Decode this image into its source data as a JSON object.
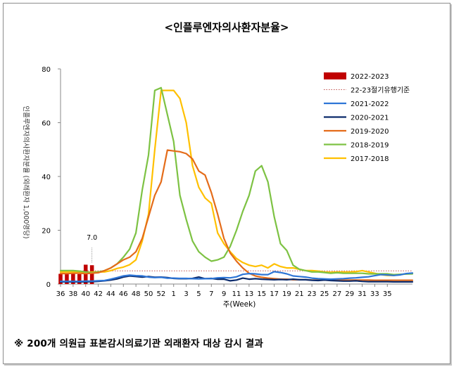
{
  "chart_data": {
    "type": "line",
    "title": "<인플루엔자의사환자분율>",
    "ylabel": "인플루엔자의사환자분율 (외래환자 1,000명당)",
    "xlabel": "주(Week)",
    "ylim": [
      0,
      80
    ],
    "yticks": [
      0,
      20,
      40,
      60,
      80
    ],
    "grid": false,
    "legend_position": "top-right",
    "x_tick_labels": [
      "36",
      "38",
      "40",
      "42",
      "44",
      "46",
      "48",
      "50",
      "52",
      "1",
      "3",
      "5",
      "7",
      "9",
      "11",
      "13",
      "15",
      "17",
      "19",
      "21",
      "23",
      "25",
      "27",
      "29",
      "31",
      "33",
      "35"
    ],
    "threshold": {
      "name": "22-23절기유행기준",
      "value": 4.9,
      "color": "#c0504d"
    },
    "bars": {
      "name": "2022-2023",
      "color": "#c00000",
      "weeks": [
        "36",
        "37",
        "38",
        "39",
        "40",
        "41"
      ],
      "values": [
        3.8,
        4.0,
        3.9,
        3.7,
        7.2,
        7.0
      ]
    },
    "annotations": [
      {
        "week": "41",
        "text": "7.0"
      }
    ],
    "series": [
      {
        "name": "2021-2022",
        "color": "#2e75d6",
        "values": [
          1.0,
          1.0,
          1.0,
          1.0,
          1.1,
          1.1,
          1.2,
          1.3,
          1.8,
          2.4,
          3.0,
          3.3,
          3.1,
          3.0,
          2.6,
          2.4,
          2.5,
          2.2,
          2.2,
          2.1,
          2.1,
          2.0,
          1.9,
          2.0,
          2.0,
          2.3,
          2.4,
          2.3,
          2.7,
          3.6,
          3.9,
          3.8,
          3.5,
          3.5,
          4.6,
          4.3,
          3.8,
          3.0,
          2.8,
          2.6,
          2.2,
          2.0,
          1.9,
          1.8,
          1.9,
          2.0,
          2.2,
          2.3,
          2.5,
          2.7,
          3.1,
          3.5,
          3.4,
          3.2,
          3.4,
          3.9,
          4.1
        ]
      },
      {
        "name": "2020-2021",
        "color": "#0b2a6b",
        "values": [
          0.8,
          0.8,
          0.8,
          0.8,
          0.8,
          0.9,
          1.0,
          1.2,
          1.5,
          1.9,
          2.6,
          3.0,
          2.8,
          2.6,
          2.8,
          2.5,
          2.6,
          2.4,
          2.1,
          2.0,
          2.0,
          2.1,
          2.6,
          2.0,
          2.1,
          1.8,
          1.8,
          1.2,
          1.5,
          2.2,
          1.8,
          2.0,
          1.8,
          1.7,
          1.6,
          1.7,
          1.6,
          1.8,
          1.6,
          1.6,
          1.4,
          1.3,
          1.5,
          1.3,
          1.2,
          1.1,
          1.1,
          1.2,
          1.0,
          0.9,
          0.9,
          0.9,
          0.9,
          0.8,
          0.8,
          0.8,
          0.8
        ]
      },
      {
        "name": "2019-2020",
        "color": "#e46c1a",
        "values": [
          3.9,
          3.9,
          4.0,
          4.0,
          3.9,
          4.0,
          4.2,
          5.0,
          6.0,
          7.5,
          9.0,
          10.0,
          12.0,
          17.0,
          25.0,
          33.0,
          38.0,
          49.8,
          49.5,
          49.2,
          48.5,
          46.5,
          42.0,
          40.5,
          34.0,
          26.0,
          17.0,
          11.5,
          8.5,
          6.0,
          4.0,
          3.0,
          2.5,
          2.2,
          2.0,
          1.8,
          1.8,
          1.6,
          1.6,
          1.6,
          1.5,
          1.5,
          1.5,
          1.6,
          1.5,
          1.5,
          1.5,
          1.5,
          1.5,
          1.5,
          1.4,
          1.4,
          1.4,
          1.4,
          1.4,
          1.4,
          1.4
        ]
      },
      {
        "name": "2018-2019",
        "color": "#7dc243",
        "values": [
          5.0,
          5.0,
          5.0,
          4.8,
          4.5,
          4.2,
          4.5,
          5.0,
          6.0,
          7.5,
          10.0,
          13.0,
          19.0,
          35.0,
          48.0,
          72.0,
          73.0,
          63.0,
          53.0,
          33.0,
          24.0,
          16.0,
          12.0,
          10.0,
          8.5,
          9.0,
          10.0,
          14.0,
          20.0,
          27.0,
          33.0,
          42.0,
          44.0,
          38.0,
          25.0,
          15.0,
          12.5,
          7.0,
          5.5,
          5.0,
          4.5,
          4.5,
          4.3,
          4.0,
          4.2,
          4.0,
          4.0,
          4.0,
          4.0,
          3.8,
          3.8,
          3.8,
          3.8,
          3.5,
          3.6,
          3.7,
          3.8
        ]
      },
      {
        "name": "2017-2018",
        "color": "#ffc000",
        "values": [
          4.5,
          4.5,
          4.5,
          4.3,
          4.3,
          4.5,
          4.5,
          4.5,
          5.0,
          5.8,
          6.3,
          7.2,
          9.0,
          16.0,
          26.0,
          50.0,
          72.0,
          72.0,
          72.0,
          69.0,
          60.0,
          44.0,
          36.0,
          32.0,
          30.0,
          19.0,
          15.0,
          12.0,
          9.5,
          8.0,
          7.0,
          6.5,
          7.0,
          6.0,
          7.5,
          6.5,
          6.0,
          6.0,
          5.5,
          5.0,
          5.0,
          4.8,
          4.5,
          4.4,
          4.5,
          4.5,
          4.5,
          4.6,
          5.0,
          4.5,
          4.0,
          3.5,
          3.2,
          3.2,
          3.5,
          3.8,
          4.0
        ]
      }
    ],
    "footnote": "※ 200개 의원급 표본감시의료기관 외래환자 대상 감시 결과"
  }
}
